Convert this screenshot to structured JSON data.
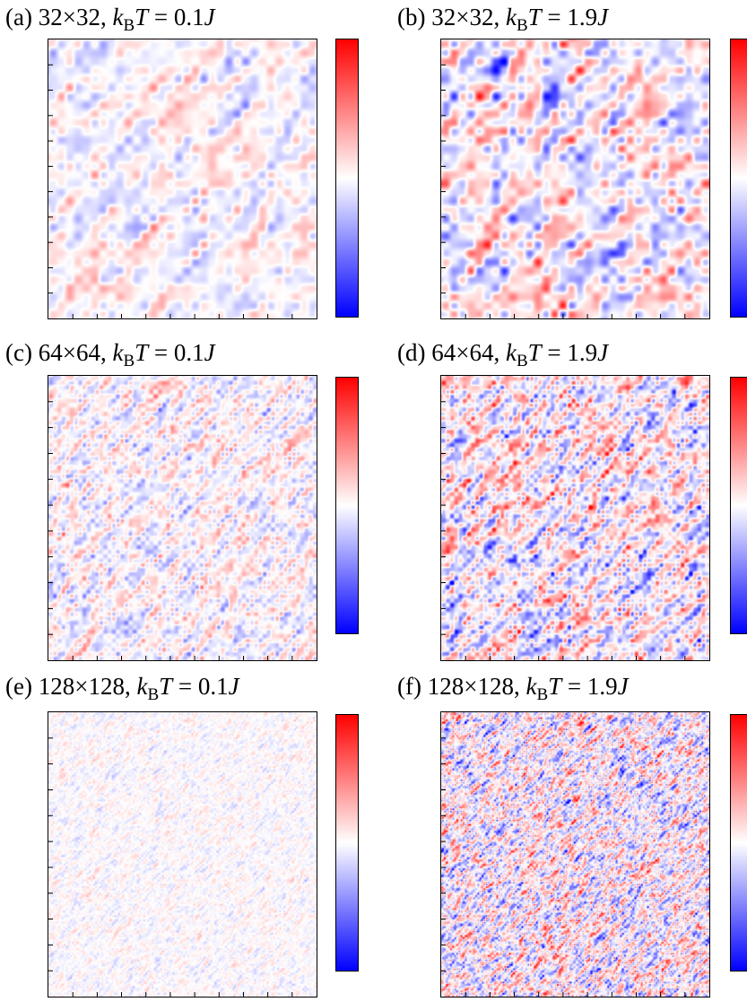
{
  "colormap": {
    "low": "#0000ff",
    "mid": "#ffffff",
    "high": "#ff0000"
  },
  "chart_data": [
    {
      "type": "heatmap",
      "panel": "(a)",
      "lattice": "32×32",
      "temperature_label": "0.1",
      "unit": "J",
      "grid_size": 32,
      "kBT_over_J": 0.1,
      "amplitude_relative": 0.45
    },
    {
      "type": "heatmap",
      "panel": "(b)",
      "lattice": "32×32",
      "temperature_label": "1.9",
      "unit": "J",
      "grid_size": 32,
      "kBT_over_J": 1.9,
      "amplitude_relative": 0.85
    },
    {
      "type": "heatmap",
      "panel": "(c)",
      "lattice": "64×64",
      "temperature_label": "0.1",
      "unit": "J",
      "grid_size": 64,
      "kBT_over_J": 0.1,
      "amplitude_relative": 0.55
    },
    {
      "type": "heatmap",
      "panel": "(d)",
      "lattice": "64×64",
      "temperature_label": "1.9",
      "unit": "J",
      "grid_size": 64,
      "kBT_over_J": 1.9,
      "amplitude_relative": 0.95
    },
    {
      "type": "heatmap",
      "panel": "(e)",
      "lattice": "128×128",
      "temperature_label": "0.1",
      "unit": "J",
      "grid_size": 128,
      "kBT_over_J": 0.1,
      "amplitude_relative": 0.25
    },
    {
      "type": "heatmap",
      "panel": "(f)",
      "lattice": "128×128",
      "temperature_label": "1.9",
      "unit": "J",
      "grid_size": 128,
      "kBT_over_J": 1.9,
      "amplitude_relative": 1.0
    }
  ]
}
